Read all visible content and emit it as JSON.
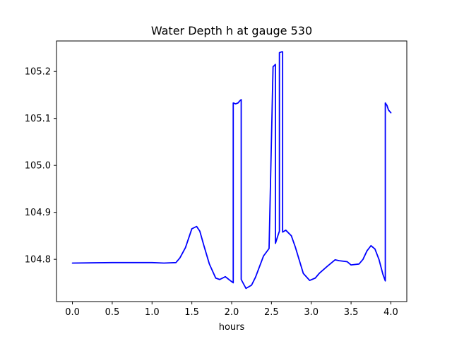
{
  "chart_data": {
    "type": "line",
    "title": "Water Depth h at gauge 530",
    "xlabel": "hours",
    "ylabel": "",
    "xlim": [
      -0.2,
      4.2
    ],
    "ylim": [
      104.71,
      105.265
    ],
    "xticks": [
      0.0,
      0.5,
      1.0,
      1.5,
      2.0,
      2.5,
      3.0,
      3.5,
      4.0
    ],
    "xtick_labels": [
      "0.0",
      "0.5",
      "1.0",
      "1.5",
      "2.0",
      "2.5",
      "3.0",
      "3.5",
      "4.0"
    ],
    "yticks": [
      104.8,
      104.9,
      105.0,
      105.1,
      105.2
    ],
    "ytick_labels": [
      "104.8",
      "104.9",
      "105.0",
      "105.1",
      "105.2"
    ],
    "grid": false,
    "series": [
      {
        "color": "#0000ff",
        "x": [
          0.0,
          0.5,
          1.0,
          1.15,
          1.3,
          1.35,
          1.42,
          1.5,
          1.56,
          1.6,
          1.65,
          1.72,
          1.8,
          1.85,
          1.92,
          1.98,
          2.02,
          2.02,
          2.05,
          2.08,
          2.1,
          2.12,
          2.12,
          2.18,
          2.25,
          2.3,
          2.4,
          2.47,
          2.52,
          2.52,
          2.55,
          2.55,
          2.58,
          2.6,
          2.6,
          2.63,
          2.64,
          2.64,
          2.68,
          2.75,
          2.8,
          2.9,
          2.98,
          3.05,
          3.1,
          3.2,
          3.3,
          3.35,
          3.45,
          3.5,
          3.6,
          3.65,
          3.7,
          3.75,
          3.8,
          3.85,
          3.9,
          3.93,
          3.93,
          3.95,
          3.97,
          4.0
        ],
        "y": [
          104.792,
          104.793,
          104.793,
          104.792,
          104.793,
          104.803,
          104.825,
          104.865,
          104.87,
          104.86,
          104.83,
          104.79,
          104.76,
          104.757,
          104.763,
          104.755,
          104.75,
          105.133,
          105.131,
          105.133,
          105.137,
          105.14,
          104.757,
          104.738,
          104.745,
          104.762,
          104.807,
          104.823,
          105.21,
          105.21,
          105.215,
          104.834,
          104.85,
          104.86,
          105.24,
          105.242,
          105.242,
          104.858,
          104.862,
          104.85,
          104.826,
          104.77,
          104.755,
          104.76,
          104.77,
          104.785,
          104.799,
          104.797,
          104.795,
          104.788,
          104.79,
          104.8,
          104.818,
          104.829,
          104.822,
          104.8,
          104.768,
          104.754,
          105.133,
          105.128,
          105.118,
          105.112
        ]
      }
    ]
  }
}
